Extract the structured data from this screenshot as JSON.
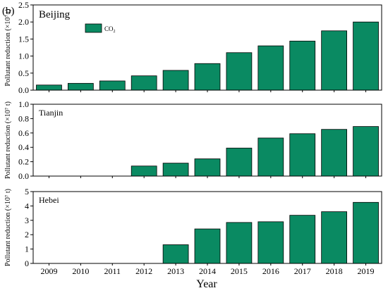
{
  "figure_label": "(b)",
  "legend": {
    "label": "CO",
    "subscript": "2",
    "color": "#0a8a62"
  },
  "bar_color": "#0a8a62",
  "chart_data": {
    "type": "bar",
    "xlabel": "Year",
    "categories": [
      "2009",
      "2010",
      "2011",
      "2012",
      "2013",
      "2014",
      "2015",
      "2016",
      "2017",
      "2018",
      "2019"
    ],
    "panels": [
      {
        "name": "Beijing",
        "ylabel": "Pollutant reduction (×10⁷ t)",
        "ylim": [
          0,
          2.5
        ],
        "yticks": [
          "0.0",
          "0.5",
          "1.0",
          "1.5",
          "2.0",
          "2.5"
        ],
        "values": [
          0.15,
          0.2,
          0.27,
          0.42,
          0.58,
          0.78,
          1.1,
          1.3,
          1.44,
          1.74,
          2.0
        ]
      },
      {
        "name": "Tianjin",
        "ylabel": "Pollutant reduction (×10⁷ t)",
        "ylim": [
          0,
          1.0
        ],
        "yticks": [
          "0.0",
          "0.2",
          "0.4",
          "0.6",
          "0.8",
          "1.0"
        ],
        "values": [
          0,
          0,
          0,
          0.14,
          0.18,
          0.24,
          0.39,
          0.53,
          0.59,
          0.65,
          0.69
        ]
      },
      {
        "name": "Hebei",
        "ylabel": "Pollutant reduction (×10⁷ t)",
        "ylim": [
          0,
          5
        ],
        "yticks": [
          "0",
          "1",
          "2",
          "3",
          "4",
          "5"
        ],
        "values": [
          0,
          0,
          0,
          0,
          1.3,
          2.4,
          2.85,
          2.9,
          3.35,
          3.6,
          4.25
        ]
      }
    ]
  }
}
